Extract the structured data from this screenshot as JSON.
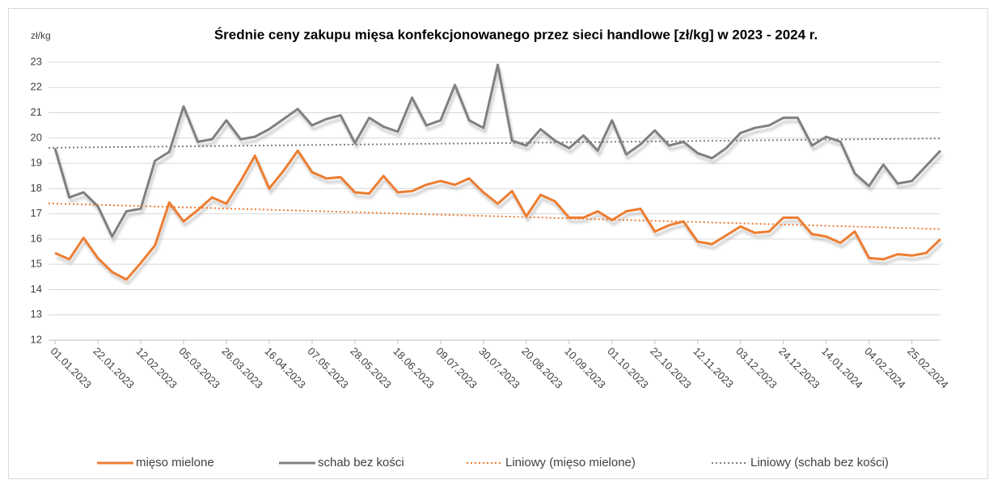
{
  "chart_data": {
    "type": "line",
    "title": "Średnie ceny zakupu mięsa konfekcjonowanego przez sieci handlowe [zł/kg]  w 2023 - 2024 r.",
    "y_label": "zł/kg",
    "categories": [
      "01.01.2023",
      null,
      null,
      "22.01.2023",
      null,
      null,
      "12.02.2023",
      null,
      null,
      "05.03.2023",
      null,
      null,
      "26.03.2023",
      null,
      null,
      "16.04.2023",
      null,
      null,
      "07.05.2023",
      null,
      null,
      "28.05.2023",
      null,
      null,
      "18.06.2023",
      null,
      null,
      "09.07.2023",
      null,
      null,
      "30.07.2023",
      null,
      null,
      "20.08.2023",
      null,
      null,
      "10.09.2023",
      null,
      null,
      "01.10.2023",
      null,
      null,
      "22.10.2023",
      null,
      null,
      "12.11.2023",
      null,
      null,
      "03.12.2023",
      null,
      null,
      "24.12.2023",
      null,
      null,
      "14.01.2024",
      null,
      null,
      "04.02.2024",
      null,
      null,
      "25.02.2024",
      null,
      null
    ],
    "series": [
      {
        "name": "mięso mielone",
        "color": "#ed7d31",
        "values": [
          15.45,
          15.2,
          16.05,
          15.25,
          14.7,
          14.4,
          15.05,
          15.75,
          17.45,
          16.7,
          17.15,
          17.65,
          17.4,
          18.3,
          19.3,
          18.0,
          18.7,
          19.5,
          18.65,
          18.4,
          18.45,
          17.85,
          17.8,
          18.5,
          17.85,
          17.9,
          18.15,
          18.3,
          18.15,
          18.4,
          17.85,
          17.4,
          17.9,
          16.9,
          17.75,
          17.5,
          16.85,
          16.85,
          17.1,
          16.75,
          17.1,
          17.2,
          16.3,
          16.55,
          16.7,
          15.9,
          15.8,
          16.15,
          16.5,
          16.25,
          16.3,
          16.85,
          16.85,
          16.2,
          16.1,
          15.85,
          16.3,
          15.25,
          15.2,
          15.4,
          15.35,
          15.45,
          16.0
        ]
      },
      {
        "name": "schab bez kości",
        "color": "#808080",
        "values": [
          19.6,
          17.65,
          17.85,
          17.3,
          16.1,
          17.1,
          17.2,
          19.1,
          19.45,
          21.25,
          19.85,
          19.95,
          20.7,
          19.95,
          20.05,
          20.35,
          20.75,
          21.15,
          20.5,
          20.75,
          20.9,
          19.8,
          20.8,
          20.45,
          20.25,
          21.6,
          20.5,
          20.7,
          22.1,
          20.7,
          20.4,
          22.9,
          19.9,
          19.7,
          20.35,
          19.9,
          19.6,
          20.1,
          19.5,
          20.7,
          19.35,
          19.75,
          20.3,
          19.7,
          19.85,
          19.4,
          19.2,
          19.6,
          20.2,
          20.4,
          20.5,
          20.8,
          20.8,
          19.7,
          20.05,
          19.85,
          18.6,
          18.1,
          18.95,
          18.2,
          18.3,
          18.9,
          19.5
        ]
      }
    ],
    "trendlines": [
      {
        "name": "Liniowy (mięso mielone)",
        "color": "#ed7d31",
        "series": 0
      },
      {
        "name": "Liniowy (schab bez kości)",
        "color": "#808080",
        "series": 1
      }
    ],
    "ylim": [
      12,
      23
    ],
    "yticks": [
      12,
      13,
      14,
      15,
      16,
      17,
      18,
      19,
      20,
      21,
      22,
      23
    ],
    "grid": true
  }
}
